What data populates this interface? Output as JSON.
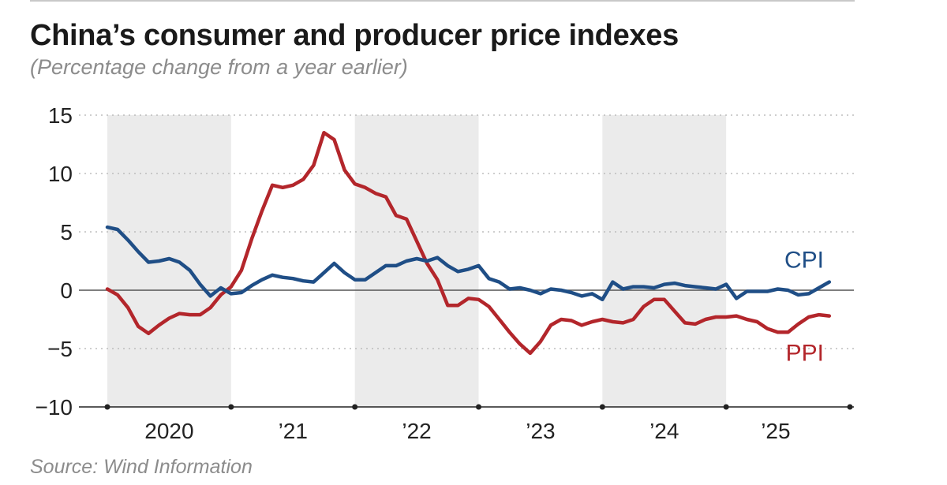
{
  "header": {
    "title": "China’s consumer and producer price indexes",
    "subtitle": "(Percentage change from a year earlier)"
  },
  "footer": {
    "source": "Source: Wind Information"
  },
  "colors": {
    "cpi": "#1f4e86",
    "ppi": "#b3262b",
    "band": "#ebebeb",
    "grid": "#bdbdbd",
    "axis": "#222222"
  },
  "chart_data": {
    "type": "line",
    "title": "China’s consumer and producer price indexes",
    "subtitle": "(Percentage change from a year earlier)",
    "xlabel": "",
    "ylabel": "",
    "ylim": [
      -10,
      15
    ],
    "xlim": [
      2020.0,
      2026.0
    ],
    "yticks": [
      15,
      10,
      5,
      0,
      -5,
      -10
    ],
    "ytick_labels": [
      "15",
      "10",
      "5",
      "0",
      "−5",
      "−10"
    ],
    "year_labels": [
      "2020",
      "’21",
      "’22",
      "’23",
      "’24",
      "’25"
    ],
    "year_label_x": [
      2020.5,
      2021.5,
      2022.5,
      2023.5,
      2024.5,
      2025.4
    ],
    "shaded_years": [
      2020,
      2022,
      2024
    ],
    "grid": "dotted horizontal",
    "series": [
      {
        "name": "CPI",
        "x": [
          2020.0,
          2020.083,
          2020.167,
          2020.25,
          2020.333,
          2020.417,
          2020.5,
          2020.583,
          2020.667,
          2020.75,
          2020.833,
          2020.917,
          2021.0,
          2021.083,
          2021.167,
          2021.25,
          2021.333,
          2021.417,
          2021.5,
          2021.583,
          2021.667,
          2021.75,
          2021.833,
          2021.917,
          2022.0,
          2022.083,
          2022.167,
          2022.25,
          2022.333,
          2022.417,
          2022.5,
          2022.583,
          2022.667,
          2022.75,
          2022.833,
          2022.917,
          2023.0,
          2023.083,
          2023.167,
          2023.25,
          2023.333,
          2023.417,
          2023.5,
          2023.583,
          2023.667,
          2023.75,
          2023.833,
          2023.917,
          2024.0,
          2024.083,
          2024.167,
          2024.25,
          2024.333,
          2024.417,
          2024.5,
          2024.583,
          2024.667,
          2024.75,
          2024.833,
          2024.917,
          2025.0,
          2025.083,
          2025.167,
          2025.25,
          2025.333,
          2025.417,
          2025.5,
          2025.583,
          2025.667,
          2025.75,
          2025.833
        ],
        "values": [
          5.4,
          5.2,
          4.3,
          3.3,
          2.4,
          2.5,
          2.7,
          2.4,
          1.7,
          0.5,
          -0.5,
          0.2,
          -0.3,
          -0.2,
          0.4,
          0.9,
          1.3,
          1.1,
          1.0,
          0.8,
          0.7,
          1.5,
          2.3,
          1.5,
          0.9,
          0.9,
          1.5,
          2.1,
          2.1,
          2.5,
          2.7,
          2.5,
          2.8,
          2.1,
          1.6,
          1.8,
          2.1,
          1.0,
          0.7,
          0.1,
          0.2,
          0.0,
          -0.3,
          0.1,
          0.0,
          -0.2,
          -0.5,
          -0.3,
          -0.8,
          0.7,
          0.1,
          0.3,
          0.3,
          0.2,
          0.5,
          0.6,
          0.4,
          0.3,
          0.2,
          0.1,
          0.5,
          -0.7,
          -0.1,
          -0.1,
          -0.1,
          0.1,
          0.0,
          -0.4,
          -0.3,
          0.2,
          0.7
        ]
      },
      {
        "name": "PPI",
        "x": [
          2020.0,
          2020.083,
          2020.167,
          2020.25,
          2020.333,
          2020.417,
          2020.5,
          2020.583,
          2020.667,
          2020.75,
          2020.833,
          2020.917,
          2021.0,
          2021.083,
          2021.167,
          2021.25,
          2021.333,
          2021.417,
          2021.5,
          2021.583,
          2021.667,
          2021.75,
          2021.833,
          2021.917,
          2022.0,
          2022.083,
          2022.167,
          2022.25,
          2022.333,
          2022.417,
          2022.5,
          2022.583,
          2022.667,
          2022.75,
          2022.833,
          2022.917,
          2023.0,
          2023.083,
          2023.167,
          2023.25,
          2023.333,
          2023.417,
          2023.5,
          2023.583,
          2023.667,
          2023.75,
          2023.833,
          2023.917,
          2024.0,
          2024.083,
          2024.167,
          2024.25,
          2024.333,
          2024.417,
          2024.5,
          2024.583,
          2024.667,
          2024.75,
          2024.833,
          2024.917,
          2025.0,
          2025.083,
          2025.167,
          2025.25,
          2025.333,
          2025.417,
          2025.5,
          2025.583,
          2025.667,
          2025.75,
          2025.833
        ],
        "values": [
          0.1,
          -0.4,
          -1.5,
          -3.1,
          -3.7,
          -3.0,
          -2.4,
          -2.0,
          -2.1,
          -2.1,
          -1.5,
          -0.4,
          0.3,
          1.7,
          4.4,
          6.8,
          9.0,
          8.8,
          9.0,
          9.5,
          10.7,
          13.5,
          12.9,
          10.3,
          9.1,
          8.8,
          8.3,
          8.0,
          6.4,
          6.1,
          4.2,
          2.3,
          0.9,
          -1.3,
          -1.3,
          -0.7,
          -0.8,
          -1.4,
          -2.5,
          -3.6,
          -4.6,
          -5.4,
          -4.4,
          -3.0,
          -2.5,
          -2.6,
          -3.0,
          -2.7,
          -2.5,
          -2.7,
          -2.8,
          -2.5,
          -1.4,
          -0.8,
          -0.8,
          -1.8,
          -2.8,
          -2.9,
          -2.5,
          -2.3,
          -2.3,
          -2.2,
          -2.5,
          -2.7,
          -3.3,
          -3.6,
          -3.6,
          -2.9,
          -2.3,
          -2.1,
          -2.2
        ]
      }
    ]
  }
}
